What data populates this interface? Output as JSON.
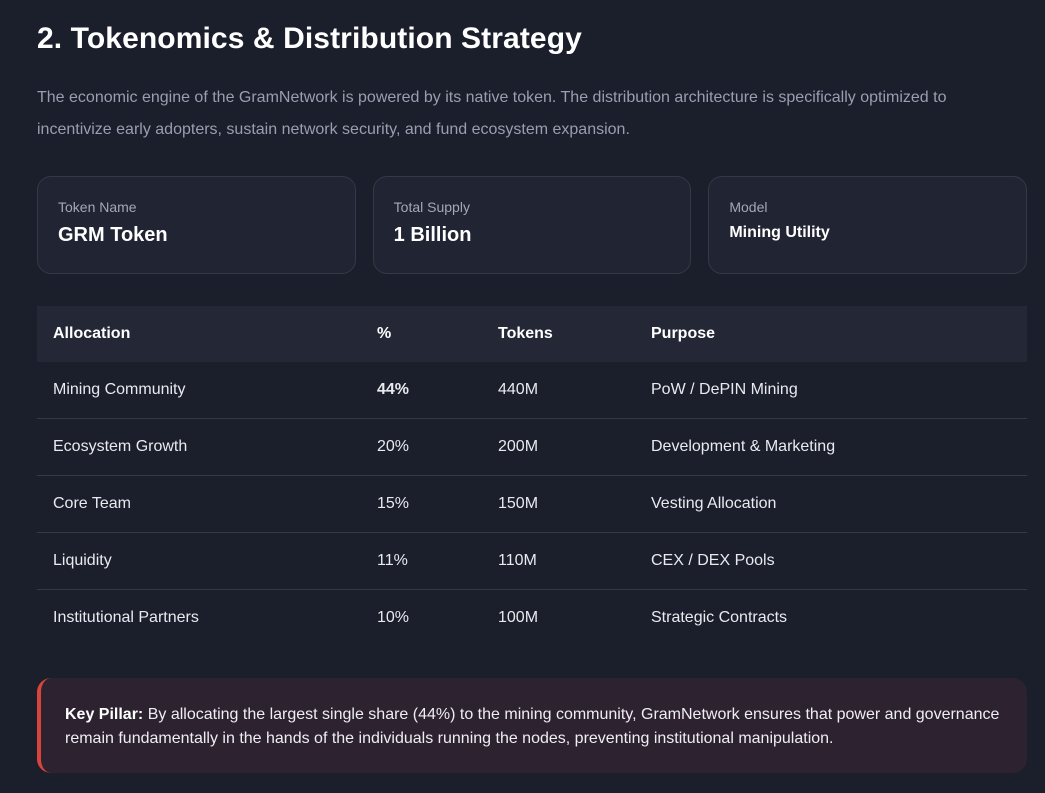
{
  "section": {
    "title": "2. Tokenomics & Distribution Strategy",
    "intro": "The economic engine of the GramNetwork is powered by its native token. The distribution architecture is specifically optimized to incentivize early adopters, sustain network security, and fund ecosystem expansion."
  },
  "cards": [
    {
      "label": "Token Name",
      "value": "GRM Token"
    },
    {
      "label": "Total Supply",
      "value": "1 Billion"
    },
    {
      "label": "Model",
      "value": "Mining Utility"
    }
  ],
  "table": {
    "headers": [
      "Allocation",
      "%",
      "Tokens",
      "Purpose"
    ],
    "rows": [
      {
        "allocation": "Mining Community",
        "percent": "44%",
        "tokens": "440M",
        "purpose": "PoW / DePIN Mining"
      },
      {
        "allocation": "Ecosystem Growth",
        "percent": "20%",
        "tokens": "200M",
        "purpose": "Development & Marketing"
      },
      {
        "allocation": "Core Team",
        "percent": "15%",
        "tokens": "150M",
        "purpose": "Vesting Allocation"
      },
      {
        "allocation": "Liquidity",
        "percent": "11%",
        "tokens": "110M",
        "purpose": "CEX / DEX Pools"
      },
      {
        "allocation": "Institutional Partners",
        "percent": "10%",
        "tokens": "100M",
        "purpose": "Strategic Contracts"
      }
    ]
  },
  "callout": {
    "label": "Key Pillar:",
    "text": "By allocating the largest single share (44%) to the mining community, GramNetwork ensures that power and governance remain fundamentally in the hands of the individuals running the nodes, preventing institutional manipulation."
  },
  "colors": {
    "background": "#1b1e2b",
    "accent": "#e05545"
  }
}
